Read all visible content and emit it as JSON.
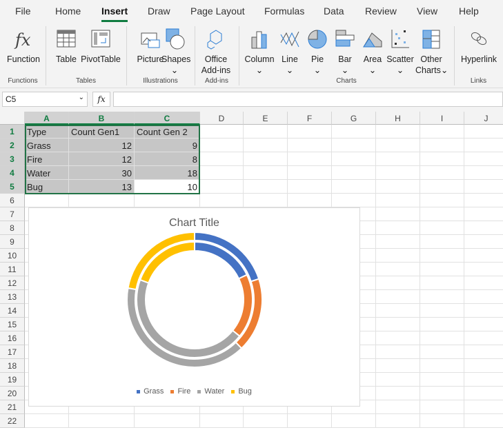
{
  "ribbon_tabs": [
    "File",
    "Home",
    "Insert",
    "Draw",
    "Page Layout",
    "Formulas",
    "Data",
    "Review",
    "View",
    "Help"
  ],
  "active_tab": "Insert",
  "ribbon": {
    "function": "Function",
    "table": "Table",
    "pivot": "PivotTable",
    "picture": "Picture",
    "shapes": "Shapes",
    "addins1": "Office",
    "addins2": "Add-ins",
    "column": "Column",
    "line": "Line",
    "pie": "Pie",
    "bar": "Bar",
    "area": "Area",
    "scatter": "Scatter",
    "other1": "Other",
    "other2": "Charts",
    "hyperlink": "Hyperlink",
    "groups": {
      "functions": "Functions",
      "tables": "Tables",
      "illustrations": "Illustrations",
      "addins": "Add-ins",
      "charts": "Charts",
      "links": "Links"
    }
  },
  "formula_bar": {
    "name_box": "C5",
    "fx": "fx",
    "value": ""
  },
  "columns": [
    "A",
    "B",
    "C",
    "D",
    "E",
    "F",
    "G",
    "H",
    "I",
    "J"
  ],
  "rows": [
    "1",
    "2",
    "3",
    "4",
    "5",
    "6",
    "7",
    "8",
    "9",
    "10",
    "11",
    "12",
    "13",
    "14",
    "15",
    "16",
    "17",
    "18",
    "19",
    "20",
    "21",
    "22"
  ],
  "table": {
    "header": [
      "Type",
      "Count Gen1",
      "Count Gen 2"
    ],
    "rows": [
      [
        "Grass",
        "12",
        "9"
      ],
      [
        "Fire",
        "12",
        "8"
      ],
      [
        "Water",
        "30",
        "18"
      ],
      [
        "Bug",
        "13",
        "10"
      ]
    ]
  },
  "chart_data": {
    "type": "doughnut",
    "title": "Chart Title",
    "categories": [
      "Grass",
      "Fire",
      "Water",
      "Bug"
    ],
    "series": [
      {
        "name": "Count Gen1",
        "values": [
          12,
          12,
          30,
          13
        ],
        "ring": "inner"
      },
      {
        "name": "Count Gen 2",
        "values": [
          9,
          8,
          18,
          10
        ],
        "ring": "outer"
      }
    ],
    "colors": [
      "#4472c4",
      "#ed7d31",
      "#a5a5a5",
      "#ffc000"
    ],
    "legend": "bottom"
  }
}
